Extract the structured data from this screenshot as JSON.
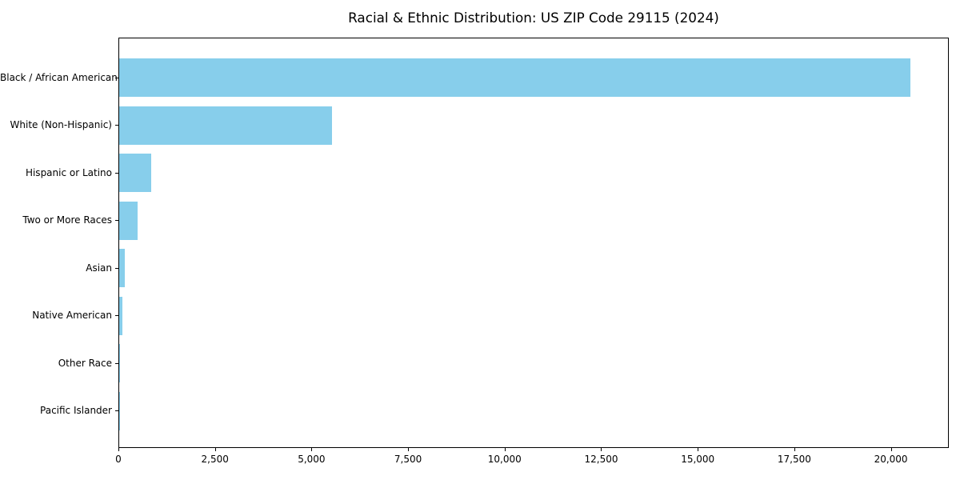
{
  "figure": {
    "background": "#ffffff",
    "title": "Racial & Ethnic Distribution: US ZIP Code 29115 (2024)"
  },
  "chart_data": {
    "type": "bar",
    "orientation": "horizontal",
    "title": "Racial & Ethnic Distribution: US ZIP Code 29115 (2024)",
    "categories": [
      "Black / African American",
      "White (Non-Hispanic)",
      "Hispanic or Latino",
      "Two or More Races",
      "Asian",
      "Native American",
      "Other Race",
      "Pacific Islander"
    ],
    "values": [
      20480,
      5510,
      825,
      480,
      145,
      80,
      20,
      5
    ],
    "xlabel": "",
    "ylabel": "",
    "xlim": [
      0,
      21500
    ],
    "xticks": [
      0,
      2500,
      5000,
      7500,
      10000,
      12500,
      15000,
      17500,
      20000
    ],
    "xtick_labels": [
      "0",
      "2,500",
      "5,000",
      "7,500",
      "10,000",
      "12,500",
      "15,000",
      "17,500",
      "20,000"
    ],
    "bar_color": "#87CEEB",
    "grid": false,
    "legend": null,
    "spine_color": "#000000"
  }
}
